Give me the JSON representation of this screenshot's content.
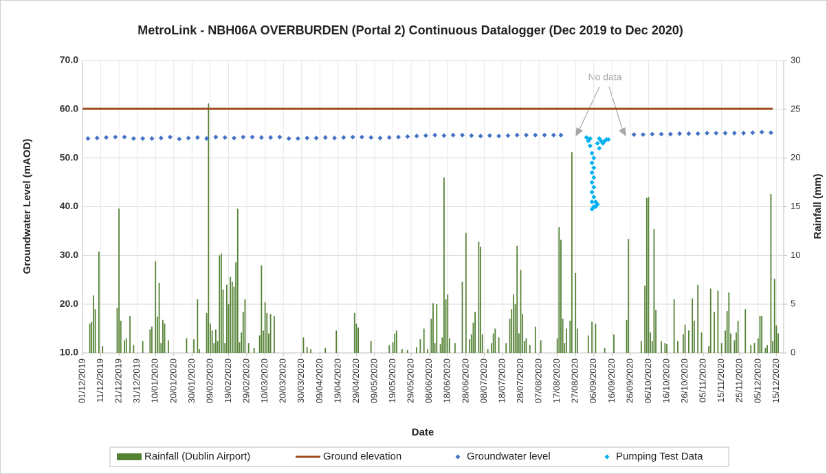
{
  "chart_data": {
    "type": "combo",
    "title": "MetroLink - NBH06A OVERBURDEN (Portal 2) Continuous Datalogger (Dec 2019 to Dec 2020)",
    "xlabel": "Date",
    "ylabel": "Groundwater Level (mAOD)",
    "y2label": "Rainfall (mm)",
    "annotation": "No data",
    "grid": true,
    "legend": "bottom",
    "xlim": [
      "2019-12-01",
      "2020-12-19"
    ],
    "xticks": [
      {
        "value": "2019-12-01",
        "label": "01/12/2019"
      },
      {
        "value": "2019-12-11",
        "label": "11/12/2019"
      },
      {
        "value": "2019-12-21",
        "label": "21/12/2019"
      },
      {
        "value": "2019-12-31",
        "label": "31/12/2019"
      },
      {
        "value": "2020-01-10",
        "label": "10/01/2020"
      },
      {
        "value": "2020-01-20",
        "label": "20/01/2020"
      },
      {
        "value": "2020-01-30",
        "label": "30/01/2020"
      },
      {
        "value": "2020-02-09",
        "label": "09/02/2020"
      },
      {
        "value": "2020-02-19",
        "label": "19/02/2020"
      },
      {
        "value": "2020-02-29",
        "label": "29/02/2020"
      },
      {
        "value": "2020-03-10",
        "label": "10/03/2020"
      },
      {
        "value": "2020-03-20",
        "label": "20/03/2020"
      },
      {
        "value": "2020-03-30",
        "label": "30/03/2020"
      },
      {
        "value": "2020-04-09",
        "label": "09/04/2020"
      },
      {
        "value": "2020-04-19",
        "label": "19/04/2020"
      },
      {
        "value": "2020-04-29",
        "label": "29/04/2020"
      },
      {
        "value": "2020-05-09",
        "label": "09/05/2020"
      },
      {
        "value": "2020-05-19",
        "label": "19/05/2020"
      },
      {
        "value": "2020-05-29",
        "label": "29/05/2020"
      },
      {
        "value": "2020-06-08",
        "label": "08/06/2020"
      },
      {
        "value": "2020-06-18",
        "label": "18/06/2020"
      },
      {
        "value": "2020-06-28",
        "label": "28/06/2020"
      },
      {
        "value": "2020-07-08",
        "label": "08/07/2020"
      },
      {
        "value": "2020-07-18",
        "label": "18/07/2020"
      },
      {
        "value": "2020-07-28",
        "label": "28/07/2020"
      },
      {
        "value": "2020-08-07",
        "label": "07/08/2020"
      },
      {
        "value": "2020-08-17",
        "label": "17/08/2020"
      },
      {
        "value": "2020-08-27",
        "label": "27/08/2020"
      },
      {
        "value": "2020-09-06",
        "label": "06/09/2020"
      },
      {
        "value": "2020-09-16",
        "label": "16/09/2020"
      },
      {
        "value": "2020-09-26",
        "label": "26/09/2020"
      },
      {
        "value": "2020-10-06",
        "label": "06/10/2020"
      },
      {
        "value": "2020-10-16",
        "label": "16/10/2020"
      },
      {
        "value": "2020-10-26",
        "label": "26/10/2020"
      },
      {
        "value": "2020-11-05",
        "label": "05/11/2020"
      },
      {
        "value": "2020-11-15",
        "label": "15/11/2020"
      },
      {
        "value": "2020-11-25",
        "label": "25/11/2020"
      },
      {
        "value": "2020-12-05",
        "label": "05/12/2020"
      },
      {
        "value": "2020-12-15",
        "label": "15/12/2020"
      }
    ],
    "ylim": [
      10,
      70
    ],
    "yticks": [
      {
        "value": 10,
        "label": "10.0"
      },
      {
        "value": 20,
        "label": "20.0"
      },
      {
        "value": 30,
        "label": "30.0"
      },
      {
        "value": 40,
        "label": "40.0"
      },
      {
        "value": 50,
        "label": "50.0"
      },
      {
        "value": 60,
        "label": "60.0"
      },
      {
        "value": 70,
        "label": "70.0"
      }
    ],
    "y2lim": [
      0,
      30
    ],
    "y2ticks": [
      0,
      5,
      10,
      15,
      20,
      25,
      30
    ],
    "series": [
      {
        "name": "Rainfall (Dublin Airport)",
        "type": "bar",
        "axis": "y2",
        "color": "#548235",
        "x": [
          "2019-12-05",
          "2019-12-06",
          "2019-12-07",
          "2019-12-08",
          "2019-12-10",
          "2019-12-12",
          "2019-12-20",
          "2019-12-21",
          "2019-12-22",
          "2019-12-24",
          "2019-12-25",
          "2019-12-27",
          "2019-12-29",
          "2020-01-03",
          "2020-01-07",
          "2020-01-08",
          "2020-01-10",
          "2020-01-11",
          "2020-01-12",
          "2020-01-13",
          "2020-01-14",
          "2020-01-15",
          "2020-01-17",
          "2020-01-27",
          "2020-01-31",
          "2020-02-02",
          "2020-02-03",
          "2020-02-07",
          "2020-02-08",
          "2020-02-09",
          "2020-02-10",
          "2020-02-11",
          "2020-02-12",
          "2020-02-13",
          "2020-02-14",
          "2020-02-15",
          "2020-02-16",
          "2020-02-17",
          "2020-02-18",
          "2020-02-19",
          "2020-02-20",
          "2020-02-21",
          "2020-02-22",
          "2020-02-23",
          "2020-02-24",
          "2020-02-25",
          "2020-02-26",
          "2020-02-27",
          "2020-02-28",
          "2020-03-01",
          "2020-03-04",
          "2020-03-07",
          "2020-03-08",
          "2020-03-09",
          "2020-03-10",
          "2020-03-11",
          "2020-03-12",
          "2020-03-13",
          "2020-03-15",
          "2020-03-31",
          "2020-04-02",
          "2020-04-04",
          "2020-04-12",
          "2020-04-18",
          "2020-04-28",
          "2020-04-29",
          "2020-04-30",
          "2020-05-07",
          "2020-05-17",
          "2020-05-19",
          "2020-05-20",
          "2020-05-21",
          "2020-05-24",
          "2020-05-27",
          "2020-06-01",
          "2020-06-03",
          "2020-06-05",
          "2020-06-07",
          "2020-06-09",
          "2020-06-10",
          "2020-06-11",
          "2020-06-12",
          "2020-06-14",
          "2020-06-15",
          "2020-06-16",
          "2020-06-17",
          "2020-06-18",
          "2020-06-19",
          "2020-06-22",
          "2020-06-26",
          "2020-06-28",
          "2020-06-30",
          "2020-07-01",
          "2020-07-02",
          "2020-07-03",
          "2020-07-05",
          "2020-07-06",
          "2020-07-07",
          "2020-07-10",
          "2020-07-12",
          "2020-07-13",
          "2020-07-14",
          "2020-07-16",
          "2020-07-20",
          "2020-07-22",
          "2020-07-23",
          "2020-07-24",
          "2020-07-25",
          "2020-07-26",
          "2020-07-27",
          "2020-07-28",
          "2020-07-29",
          "2020-07-30",
          "2020-07-31",
          "2020-08-02",
          "2020-08-05",
          "2020-08-08",
          "2020-08-17",
          "2020-08-18",
          "2020-08-19",
          "2020-08-20",
          "2020-08-21",
          "2020-08-22",
          "2020-08-24",
          "2020-08-25",
          "2020-08-27",
          "2020-08-28",
          "2020-09-03",
          "2020-09-05",
          "2020-09-07",
          "2020-09-12",
          "2020-09-17",
          "2020-09-24",
          "2020-09-25",
          "2020-10-02",
          "2020-10-04",
          "2020-10-05",
          "2020-10-06",
          "2020-10-07",
          "2020-10-08",
          "2020-10-09",
          "2020-10-10",
          "2020-10-13",
          "2020-10-15",
          "2020-10-16",
          "2020-10-20",
          "2020-10-22",
          "2020-10-25",
          "2020-10-26",
          "2020-10-28",
          "2020-10-30",
          "2020-10-31",
          "2020-11-02",
          "2020-11-04",
          "2020-11-08",
          "2020-11-09",
          "2020-11-11",
          "2020-11-13",
          "2020-11-15",
          "2020-11-17",
          "2020-11-18",
          "2020-11-19",
          "2020-11-20",
          "2020-11-22",
          "2020-11-23",
          "2020-11-24",
          "2020-11-28",
          "2020-12-01",
          "2020-12-03",
          "2020-12-05",
          "2020-12-06",
          "2020-12-07",
          "2020-12-09",
          "2020-12-10",
          "2020-12-12",
          "2020-12-13",
          "2020-12-14",
          "2020-12-15",
          "2020-12-16"
        ],
        "values": [
          3.0,
          3.2,
          5.9,
          4.5,
          10.4,
          0.7,
          4.6,
          14.8,
          3.3,
          1.3,
          1.5,
          3.8,
          0.8,
          1.2,
          2.4,
          2.7,
          9.4,
          3.7,
          7.2,
          1.0,
          3.4,
          3.0,
          1.3,
          1.5,
          1.4,
          5.5,
          0.4,
          4.1,
          25.6,
          3.0,
          2.3,
          1.0,
          2.4,
          1.2,
          10.0,
          10.2,
          6.5,
          1.0,
          7.0,
          5.0,
          7.8,
          7.3,
          6.8,
          9.3,
          14.8,
          1.1,
          2.1,
          4.2,
          5.5,
          1.0,
          0.5,
          1.8,
          9.0,
          2.3,
          5.2,
          4.1,
          2.0,
          4.0,
          3.8,
          1.6,
          0.6,
          0.4,
          0.5,
          2.3,
          4.1,
          3.0,
          2.6,
          1.2,
          0.8,
          1.1,
          2.0,
          2.3,
          0.4,
          0.3,
          0.6,
          1.4,
          2.5,
          0.4,
          3.5,
          5.1,
          1.0,
          5.0,
          0.9,
          1.6,
          18.0,
          5.5,
          6.0,
          1.5,
          1.0,
          7.3,
          12.3,
          1.4,
          1.9,
          3.1,
          4.2,
          11.4,
          10.9,
          1.9,
          0.4,
          1.0,
          2.0,
          2.5,
          1.6,
          1.0,
          3.5,
          4.5,
          6.0,
          5.0,
          11.0,
          2.0,
          8.5,
          4.0,
          1.2,
          1.5,
          0.8,
          2.7,
          1.3,
          1.5,
          12.9,
          11.6,
          3.5,
          1.0,
          2.5,
          3.3,
          20.6,
          8.2,
          2.5,
          1.8,
          3.2,
          3.0,
          0.5,
          1.9,
          3.4,
          11.7,
          1.2,
          6.9,
          15.9,
          16.0,
          2.1,
          1.2,
          12.7,
          4.4,
          1.2,
          1.0,
          0.9,
          5.5,
          1.2,
          1.9,
          2.9,
          2.3,
          5.6,
          3.3,
          7.0,
          2.1,
          0.7,
          6.6,
          4.2,
          6.4,
          1.0,
          2.3,
          4.3,
          6.2,
          2.0,
          1.3,
          2.1,
          3.3,
          4.5,
          0.8,
          1.0,
          1.5,
          3.8,
          3.8,
          0.5,
          0.8,
          16.3,
          1.2,
          7.6,
          2.8,
          2.0
        ]
      },
      {
        "name": "Ground elevation",
        "type": "line",
        "axis": "y",
        "color": "#9e4a1c",
        "x": [
          "2019-12-01",
          "2020-12-13"
        ],
        "values": [
          60.1,
          60.1
        ]
      },
      {
        "name": "Groundwater level",
        "type": "scatter",
        "axis": "y",
        "color": "#4472c4",
        "x": [
          "2019-12-04",
          "2019-12-09",
          "2019-12-14",
          "2019-12-19",
          "2019-12-24",
          "2019-12-29",
          "2020-01-03",
          "2020-01-08",
          "2020-01-13",
          "2020-01-18",
          "2020-01-23",
          "2020-01-28",
          "2020-02-02",
          "2020-02-07",
          "2020-02-12",
          "2020-02-17",
          "2020-02-22",
          "2020-02-27",
          "2020-03-03",
          "2020-03-08",
          "2020-03-13",
          "2020-03-18",
          "2020-03-23",
          "2020-03-28",
          "2020-04-02",
          "2020-04-07",
          "2020-04-12",
          "2020-04-17",
          "2020-04-22",
          "2020-04-27",
          "2020-05-02",
          "2020-05-07",
          "2020-05-12",
          "2020-05-17",
          "2020-05-22",
          "2020-05-27",
          "2020-06-01",
          "2020-06-06",
          "2020-06-11",
          "2020-06-16",
          "2020-06-21",
          "2020-06-26",
          "2020-07-01",
          "2020-07-06",
          "2020-07-11",
          "2020-07-16",
          "2020-07-21",
          "2020-07-26",
          "2020-07-31",
          "2020-08-05",
          "2020-08-10",
          "2020-08-15",
          "2020-08-19",
          "2020-09-28",
          "2020-10-03",
          "2020-10-08",
          "2020-10-13",
          "2020-10-18",
          "2020-10-23",
          "2020-10-28",
          "2020-11-02",
          "2020-11-07",
          "2020-11-12",
          "2020-11-17",
          "2020-11-22",
          "2020-11-27",
          "2020-12-02",
          "2020-12-07",
          "2020-12-12"
        ],
        "values": [
          54.0,
          54.1,
          54.2,
          54.3,
          54.3,
          54.0,
          54.0,
          54.0,
          54.1,
          54.3,
          53.9,
          54.1,
          54.2,
          54.0,
          54.3,
          54.2,
          54.1,
          54.3,
          54.3,
          54.2,
          54.2,
          54.3,
          54.0,
          54.0,
          54.1,
          54.1,
          54.2,
          54.1,
          54.2,
          54.3,
          54.3,
          54.2,
          54.1,
          54.2,
          54.3,
          54.4,
          54.5,
          54.6,
          54.7,
          54.6,
          54.7,
          54.7,
          54.6,
          54.5,
          54.6,
          54.5,
          54.6,
          54.7,
          54.7,
          54.7,
          54.7,
          54.7,
          54.7,
          54.8,
          54.8,
          54.9,
          54.9,
          54.9,
          55.0,
          55.0,
          55.0,
          55.1,
          55.1,
          55.1,
          55.1,
          55.1,
          55.2,
          55.3,
          55.2
        ]
      },
      {
        "name": "Pumping Test Data",
        "type": "scatter",
        "axis": "y",
        "color": "#00b0f0",
        "x": [
          "2020-09-02",
          "2020-09-03",
          "2020-09-04",
          "2020-09-04",
          "2020-09-05",
          "2020-09-05",
          "2020-09-05",
          "2020-09-05",
          "2020-09-05",
          "2020-09-05",
          "2020-09-05",
          "2020-09-06",
          "2020-09-06",
          "2020-09-06",
          "2020-09-06",
          "2020-09-06",
          "2020-09-06",
          "2020-09-07",
          "2020-09-07",
          "2020-09-08",
          "2020-09-08",
          "2020-09-09",
          "2020-09-09",
          "2020-09-10",
          "2020-09-11",
          "2020-09-12",
          "2020-09-13",
          "2020-09-14"
        ],
        "values": [
          54.2,
          53.5,
          54.0,
          52.5,
          51.0,
          49.0,
          47.0,
          45.0,
          43.0,
          41.0,
          39.5,
          40.0,
          42.0,
          44.0,
          46.0,
          48.0,
          50.0,
          40.0,
          41.0,
          40.5,
          53.0,
          54.0,
          52.0,
          53.5,
          53.0,
          53.5,
          53.8,
          53.8
        ]
      }
    ]
  }
}
